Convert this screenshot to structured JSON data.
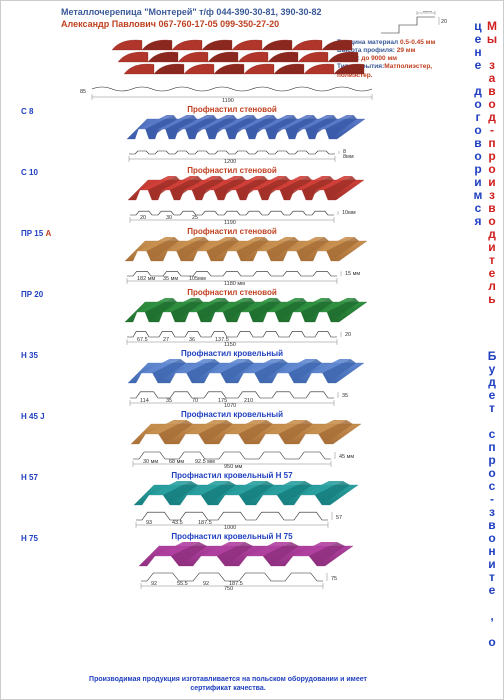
{
  "header": {
    "line1": "Металлочерепица \"Монтерей\" т/ф 044-390-30-81, 390-30-82",
    "line2": "Александр Павлович  067-760-17-05   099-350-27-20"
  },
  "vertical": {
    "part1": "Мы завод-производитель",
    "part2": "Будет спрос-звоните , о цене договоримся"
  },
  "spec": {
    "step": "350",
    "height": "20",
    "thickness_label": "Толщина материал",
    "thickness": "0.5-0.45 мм",
    "profile_h_label": "Высота профиля:",
    "profile_h": "29 мм",
    "length_label": "Длина:",
    "length": "до 9000 мм",
    "coating_label": "Тип покрытия:",
    "coating": "Матполиэстер, полиэстер."
  },
  "tile": {
    "width": "1190",
    "edge": "85",
    "color": "#b0352a",
    "color_dark": "#8a2820"
  },
  "profiles": [
    {
      "code": "С 8",
      "title": "Профнастил стеновой",
      "color": "#5a7ac8",
      "color_dark": "#3a5aa8",
      "width": "1200",
      "edge_h": "8",
      "edge_w": "8мм",
      "ridges": 10,
      "ridge_w": 14,
      "gap": 20
    },
    {
      "code": "С 10",
      "title": "Профнастил стеновой",
      "color": "#d04038",
      "color_dark": "#a03028",
      "width": "1190",
      "edge_h": "10мм",
      "dims": [
        "20",
        "30",
        "25"
      ],
      "ridges": 9,
      "ridge_w": 16,
      "gap": 22
    },
    {
      "code": "ПР 15",
      "code_suffix": "А",
      "title": "Профнастил стеновой",
      "color": "#c89050",
      "color_dark": "#a87038",
      "width": "1180 мм",
      "edge_h": "15 мм",
      "dims": [
        "182 мм",
        "35 мм",
        "105мм"
      ],
      "ridges": 7,
      "ridge_w": 18,
      "gap": 30
    },
    {
      "code": "ПР 20",
      "title": "Профнастил стеновой",
      "color": "#309040",
      "color_dark": "#207030",
      "width": "1150",
      "edge_h": "20",
      "dims": [
        "67.5",
        "27",
        "36",
        "137.5"
      ],
      "ridges": 8,
      "ridge_w": 16,
      "gap": 26
    },
    {
      "code": "Н 35",
      "title": "Профнастил кровельный",
      "title_color": "blue",
      "color": "#6088d0",
      "color_dark": "#4068b0",
      "width": "1070",
      "width2": "1130",
      "edge_h": "35",
      "dims": [
        "114",
        "35",
        "70",
        "175",
        "210"
      ],
      "ridges": 6,
      "ridge_w": 22,
      "gap": 34
    },
    {
      "code": "Н 45 J",
      "title": "Профнастил кровельный",
      "title_color": "blue",
      "color": "#c89050",
      "color_dark": "#a87038",
      "width": "950 мм",
      "edge_h": "45 мм",
      "dims": [
        "30 мм",
        "68 мм",
        "92.5 мм"
      ],
      "ridges": 5,
      "ridge_w": 26,
      "gap": 40
    },
    {
      "code": "Н 57",
      "title": "Профнастил кровельный Н 57",
      "title_color": "blue",
      "color": "#2aa0a0",
      "color_dark": "#188080",
      "width": "1000",
      "width2": "1050",
      "edge_h": "57",
      "dims": [
        "93",
        "43.5",
        "187.5"
      ],
      "ridges": 5,
      "ridge_w": 28,
      "gap": 38
    },
    {
      "code": "Н 75",
      "title": "Профнастил кровельный Н 75",
      "title_color": "blue",
      "color": "#b040a0",
      "color_dark": "#903080",
      "width": "750",
      "width2": "800",
      "edge_h": "75",
      "dims": [
        "92",
        "55.5",
        "92",
        "187.5"
      ],
      "dims_v": [
        "30",
        "22"
      ],
      "ridges": 4,
      "ridge_w": 32,
      "gap": 46
    }
  ],
  "footer": "Производимая продукция изготавливается на польском оборудовании и имеет\nсертификат качества."
}
